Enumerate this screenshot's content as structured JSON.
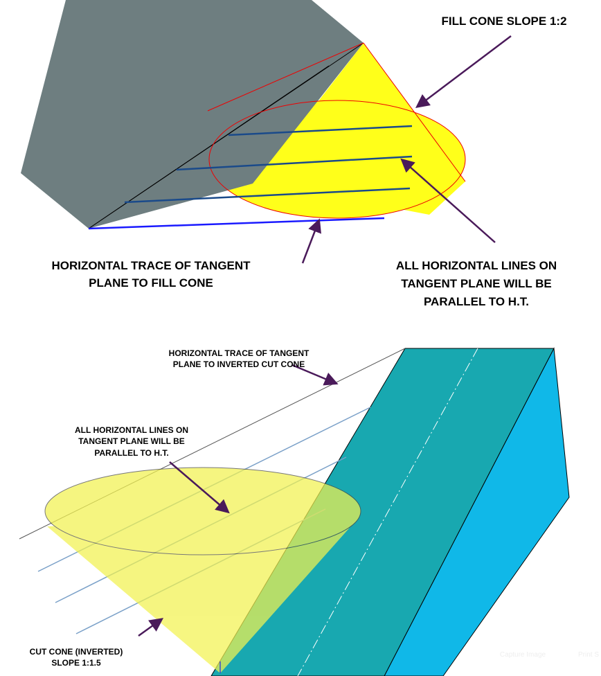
{
  "top_figure": {
    "labels": [
      {
        "lines": [
          "FILL CONE SLOPE 1:2"
        ]
      },
      {
        "lines": [
          "HORIZONTAL TRACE OF TANGENT",
          "PLANE TO FILL CONE"
        ]
      },
      {
        "lines": [
          "ALL HORIZONTAL LINES ON",
          "TANGENT PLANE WILL BE",
          "PARALLEL TO H.T."
        ]
      }
    ]
  },
  "bottom_figure": {
    "labels": [
      {
        "lines": [
          "HORIZONTAL TRACE OF TANGENT",
          "PLANE TO INVERTED CUT CONE"
        ]
      },
      {
        "lines": [
          "ALL HORIZONTAL LINES ON",
          "TANGENT PLANE WILL BE",
          "PARALLEL TO H.T."
        ]
      },
      {
        "lines": [
          "CUT CONE (INVERTED)",
          "SLOPE 1:1.5"
        ]
      }
    ]
  },
  "overlay": {
    "buttons": [
      "Capture Image",
      "Print S"
    ]
  }
}
